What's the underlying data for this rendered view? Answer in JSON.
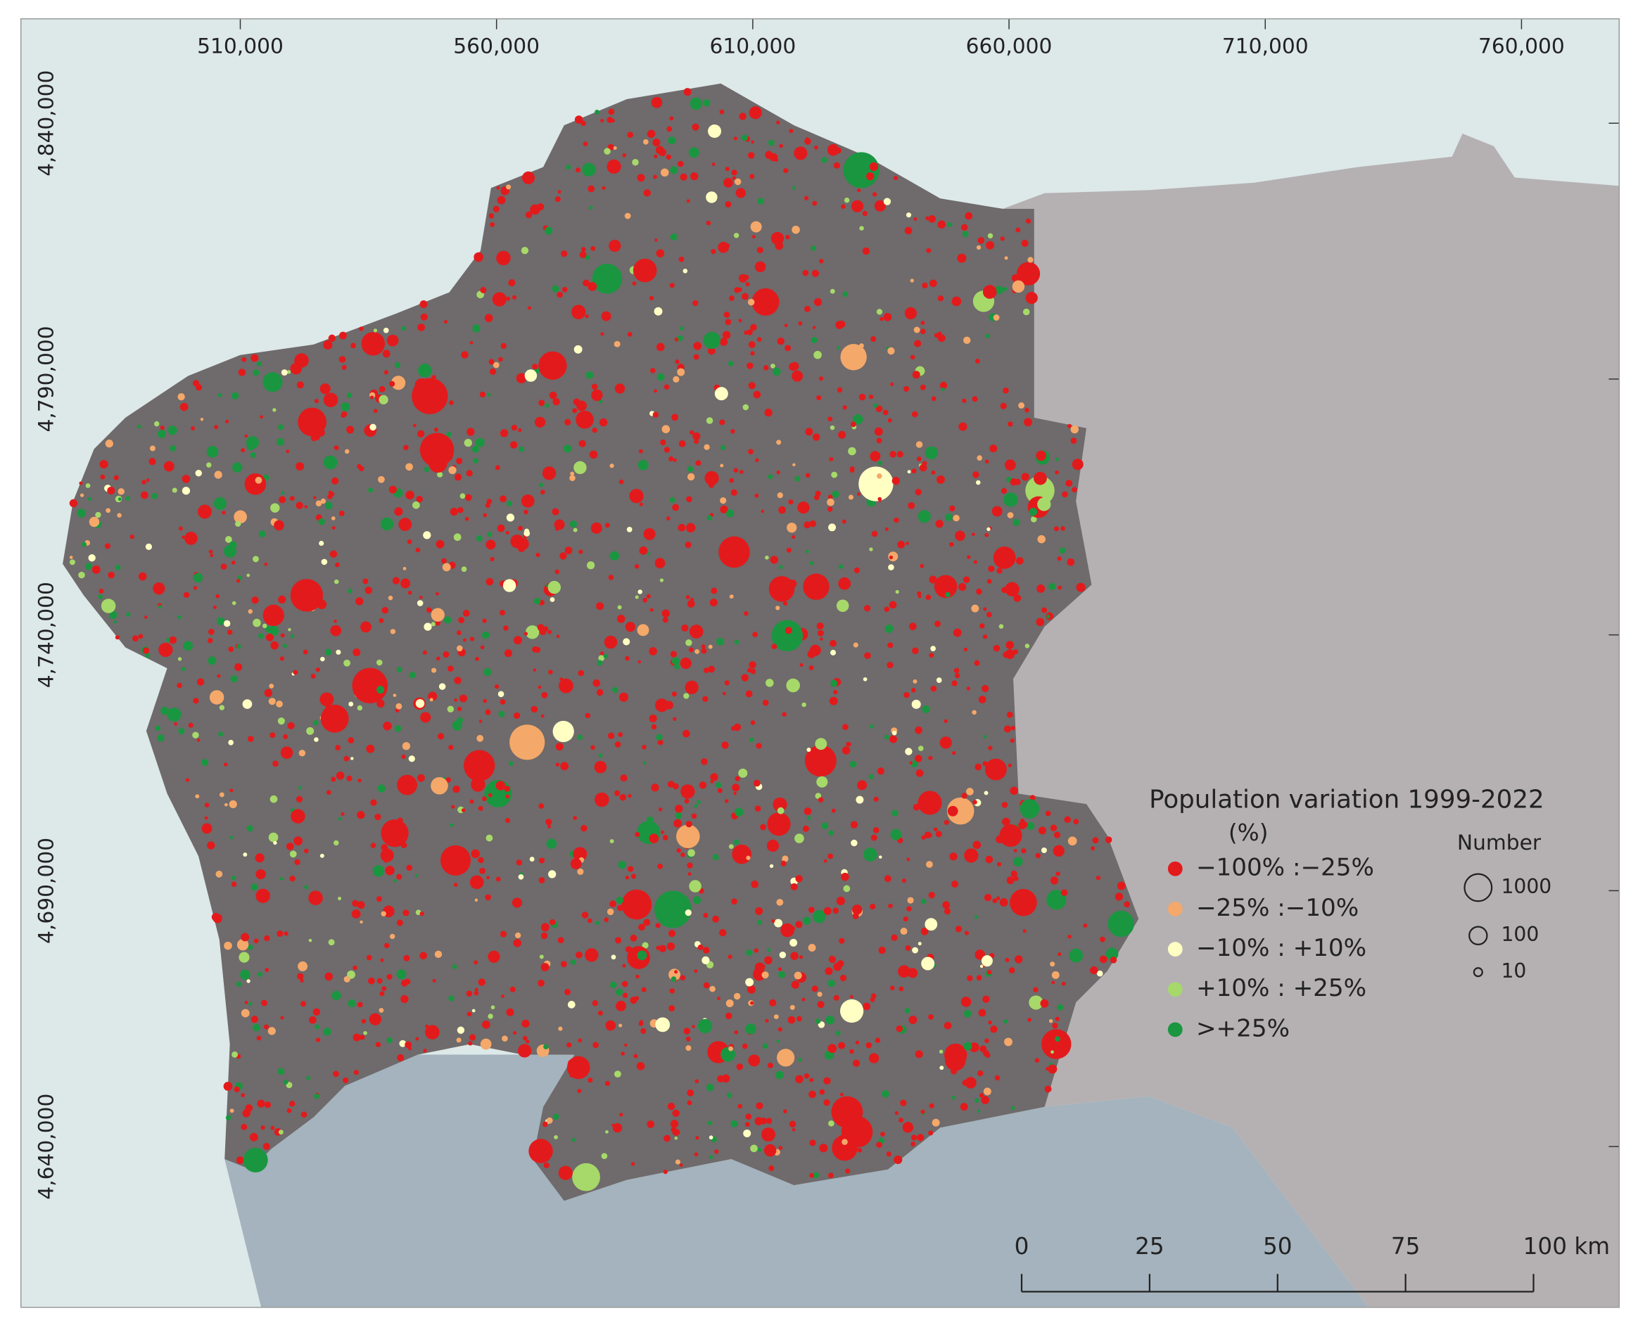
{
  "map": {
    "xticks": [
      {
        "value": 510000,
        "label": "510,000"
      },
      {
        "value": 560000,
        "label": "560,000"
      },
      {
        "value": 610000,
        "label": "610,000"
      },
      {
        "value": 660000,
        "label": "660,000"
      },
      {
        "value": 710000,
        "label": "710,000"
      },
      {
        "value": 760000,
        "label": "760,000"
      }
    ],
    "yticks": [
      {
        "value": 4840000,
        "label": "4,840,000"
      },
      {
        "value": 4790000,
        "label": "4,790,000"
      },
      {
        "value": 4740000,
        "label": "4,740,000"
      },
      {
        "value": 4690000,
        "label": "4,690,000"
      },
      {
        "value": 4640000,
        "label": "4,640,000"
      }
    ],
    "legend": {
      "title": "Population variation 1999-2022",
      "subtitle": "(%)",
      "classes": [
        {
          "label": "−100% :−25%",
          "color": "#e31a1c"
        },
        {
          "label": "−25% :−10%",
          "color": "#f4a86a"
        },
        {
          "label": "−10% : +10%",
          "color": "#ffffc4"
        },
        {
          "label": "+10% : +25%",
          "color": "#a6d96a"
        },
        {
          "label": ">+25%",
          "color": "#1a9641"
        }
      ]
    },
    "size_legend": {
      "title": "Number",
      "values": [
        1000,
        100,
        10
      ]
    },
    "scale_bar": {
      "ticks": [
        0,
        25,
        50,
        75,
        {
          "value": 100,
          "label": "100 km"
        }
      ]
    }
  }
}
